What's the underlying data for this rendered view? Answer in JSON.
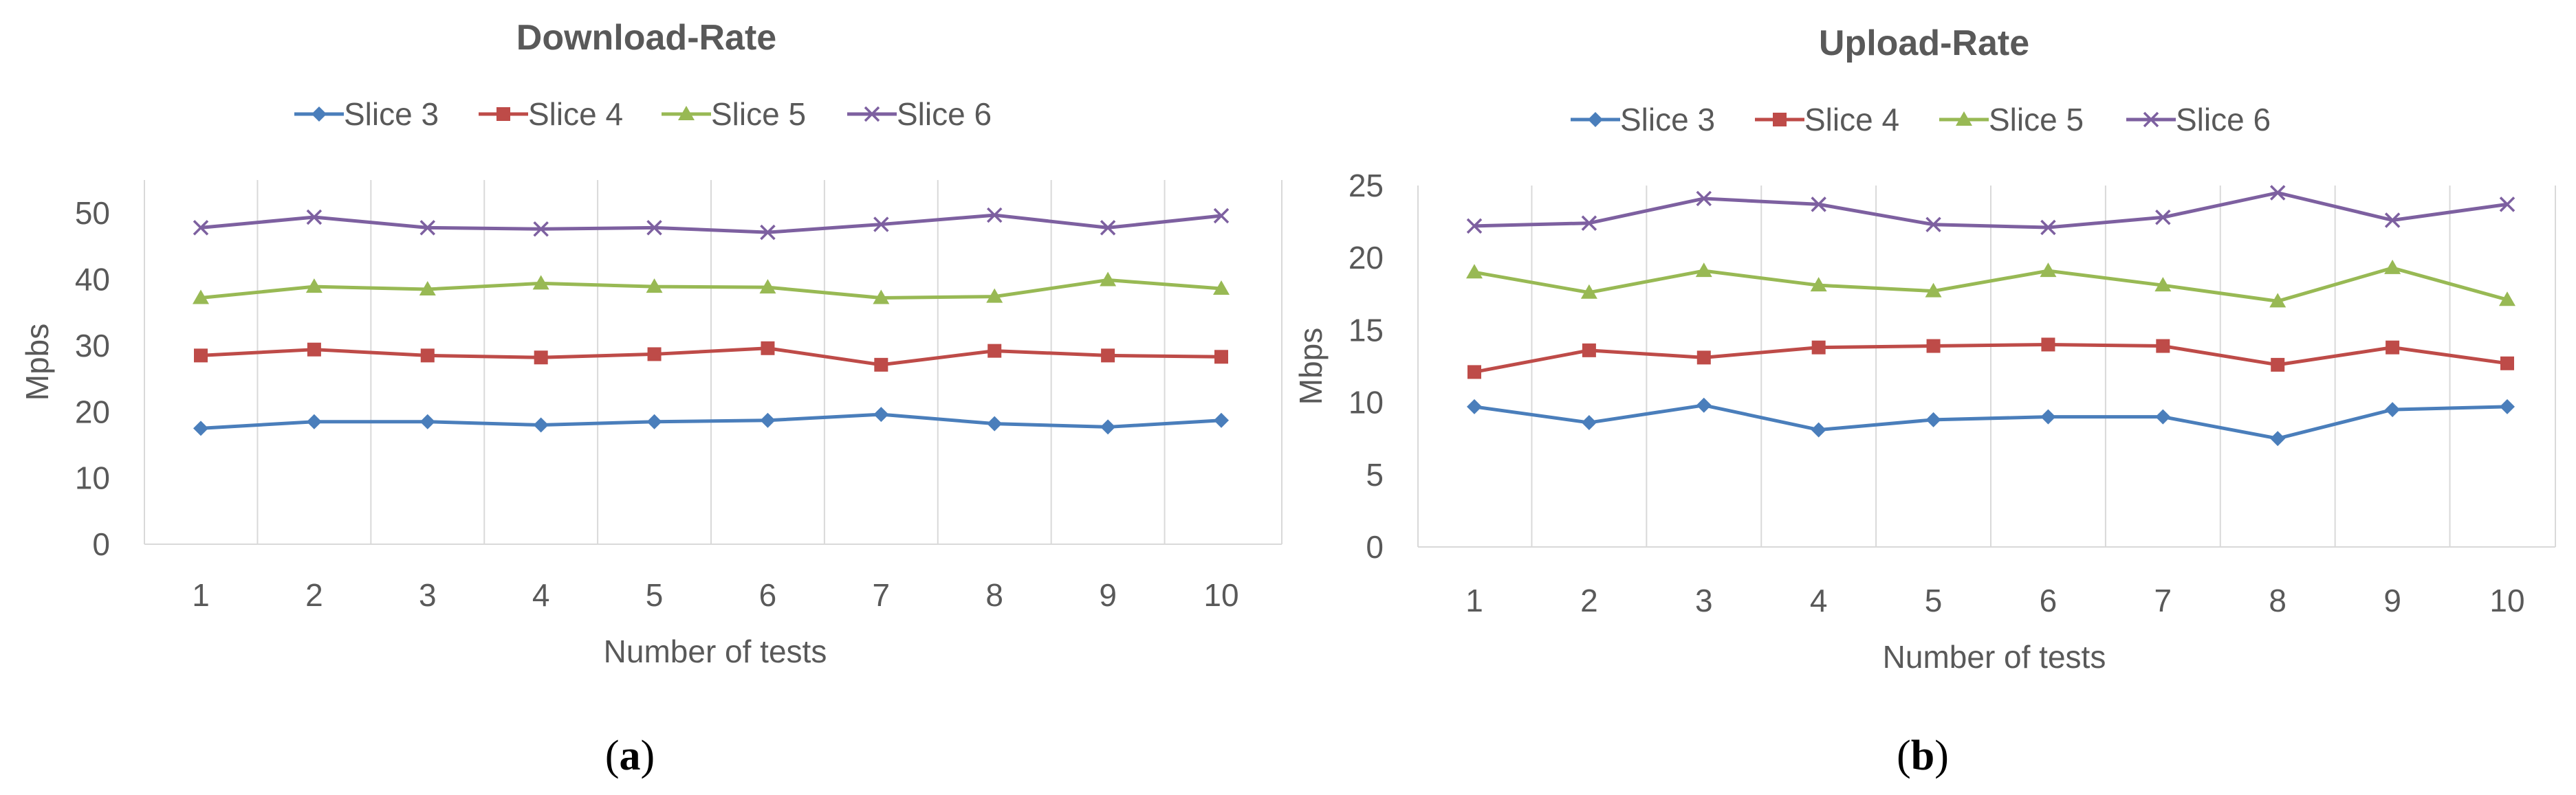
{
  "figure": {
    "panels": [
      {
        "caption_open": "(",
        "caption_letter": "a",
        "caption_close": ")"
      },
      {
        "caption_open": "(",
        "caption_letter": "b",
        "caption_close": ")"
      }
    ]
  },
  "chart_data": [
    {
      "type": "line",
      "title": "Download-Rate",
      "xlabel": "Number of tests",
      "ylabel": "Mpbs",
      "x": [
        1,
        2,
        3,
        4,
        5,
        6,
        7,
        8,
        9,
        10
      ],
      "ylim": [
        0,
        55
      ],
      "yticks": [
        0,
        10,
        20,
        30,
        40,
        50
      ],
      "grid": "vertical",
      "legend": "top",
      "series": [
        {
          "name": "Slice 3",
          "color": "#4a7ebb",
          "marker": "diamond",
          "values": [
            17.5,
            18.5,
            18.5,
            18,
            18.5,
            18.7,
            19.6,
            18.2,
            17.7,
            18.7
          ]
        },
        {
          "name": "Slice 4",
          "color": "#be4b48",
          "marker": "square",
          "values": [
            28.5,
            29.4,
            28.5,
            28.2,
            28.7,
            29.6,
            27.1,
            29.2,
            28.5,
            28.3
          ]
        },
        {
          "name": "Slice 5",
          "color": "#98b954",
          "marker": "triangle",
          "values": [
            37.2,
            38.9,
            38.5,
            39.4,
            38.9,
            38.8,
            37.2,
            37.4,
            39.9,
            38.6
          ]
        },
        {
          "name": "Slice 6",
          "color": "#7d60a0",
          "marker": "x",
          "values": [
            47.8,
            49.4,
            47.8,
            47.6,
            47.8,
            47.1,
            48.3,
            49.7,
            47.8,
            49.6
          ]
        }
      ]
    },
    {
      "type": "line",
      "title": "Upload-Rate",
      "xlabel": "Number of tests",
      "ylabel": "Mbps",
      "x": [
        1,
        2,
        3,
        4,
        5,
        6,
        7,
        8,
        9,
        10
      ],
      "ylim": [
        0,
        25
      ],
      "yticks": [
        0,
        5,
        10,
        15,
        20,
        25
      ],
      "grid": "vertical",
      "legend": "top",
      "series": [
        {
          "name": "Slice 3",
          "color": "#4a7ebb",
          "marker": "diamond",
          "values": [
            9.7,
            8.6,
            9.8,
            8.1,
            8.8,
            9,
            9,
            7.5,
            9.5,
            9.7
          ]
        },
        {
          "name": "Slice 4",
          "color": "#be4b48",
          "marker": "square",
          "values": [
            12.1,
            13.6,
            13.1,
            13.8,
            13.9,
            14,
            13.9,
            12.6,
            13.8,
            12.7
          ]
        },
        {
          "name": "Slice 5",
          "color": "#98b954",
          "marker": "triangle",
          "values": [
            19,
            17.6,
            19.1,
            18.1,
            17.7,
            19.1,
            18.1,
            17,
            19.3,
            17.1
          ]
        },
        {
          "name": "Slice 6",
          "color": "#7d60a0",
          "marker": "x",
          "values": [
            22.2,
            22.4,
            24.1,
            23.7,
            22.3,
            22.1,
            22.8,
            24.5,
            22.6,
            23.7
          ]
        }
      ]
    }
  ]
}
